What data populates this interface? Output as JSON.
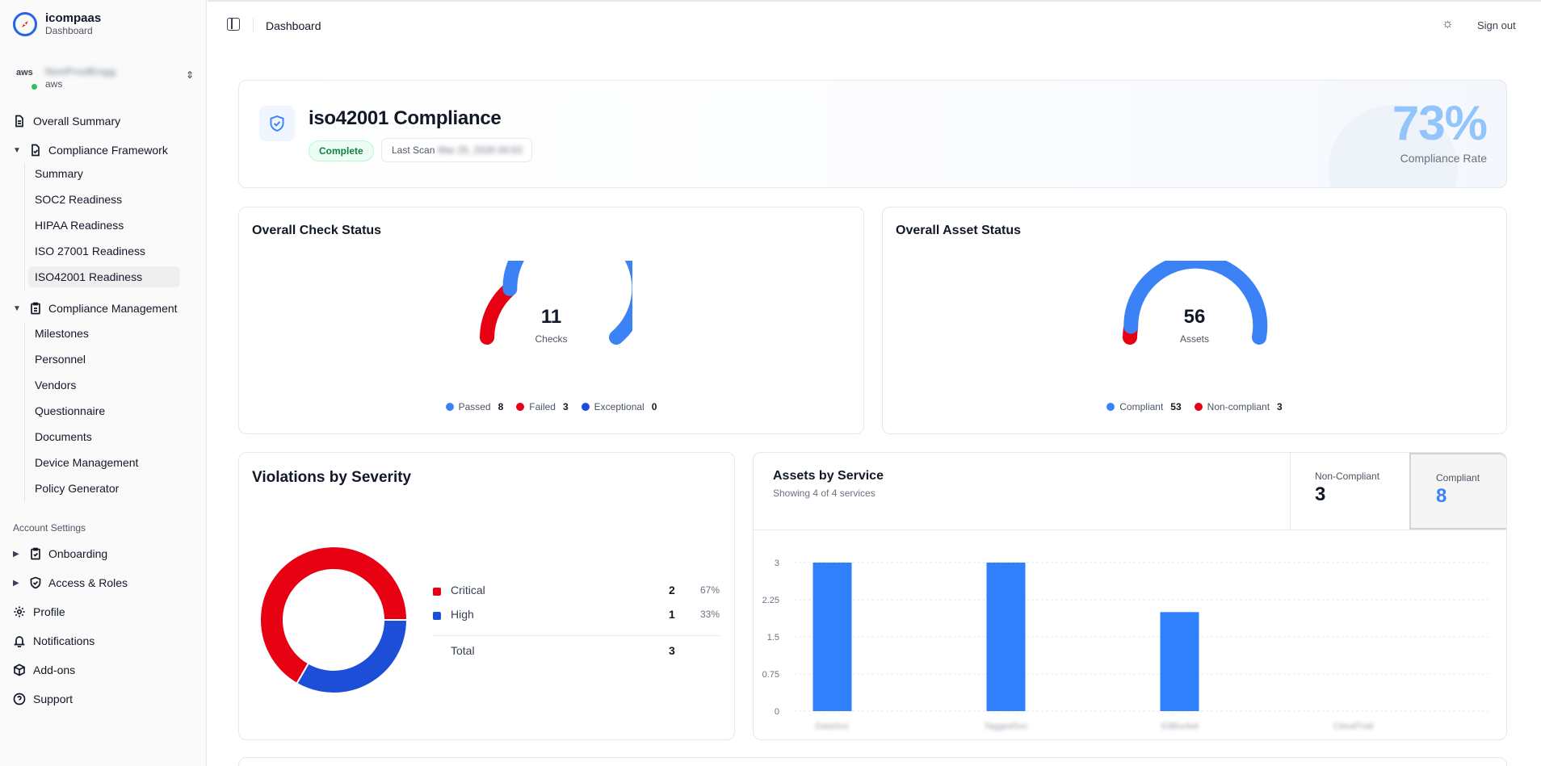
{
  "brand": {
    "title": "icompaas",
    "subtitle": "Dashboard"
  },
  "org": {
    "logo_text": "aws",
    "name": "NonProdEngg",
    "provider": "aws"
  },
  "sidebar": {
    "overall_summary": "Overall Summary",
    "compliance_framework": {
      "label": "Compliance Framework",
      "items": [
        "Summary",
        "SOC2 Readiness",
        "HIPAA Readiness",
        "ISO 27001 Readiness",
        "ISO42001 Readiness"
      ],
      "active_index": 4
    },
    "compliance_management": {
      "label": "Compliance Management",
      "items": [
        "Milestones",
        "Personnel",
        "Vendors",
        "Questionnaire",
        "Documents",
        "Device Management",
        "Policy Generator"
      ]
    },
    "account_settings_label": "Account Settings",
    "onboarding": "Onboarding",
    "access_roles": "Access & Roles",
    "profile": "Profile",
    "notifications": "Notifications",
    "addons": "Add-ons",
    "support": "Support"
  },
  "topbar": {
    "title": "Dashboard",
    "sign_out": "Sign out"
  },
  "hero": {
    "title": "iso42001 Compliance",
    "status": "Complete",
    "last_scan_label": "Last Scan",
    "last_scan_value": "Mar 25, 2026 00:53",
    "rate": "73%",
    "rate_label": "Compliance Rate"
  },
  "check_status": {
    "title": "Overall Check Status",
    "total": "11",
    "unit": "Checks",
    "legend": [
      {
        "label": "Passed",
        "count": "8",
        "color": "#3b82f6"
      },
      {
        "label": "Failed",
        "count": "3",
        "color": "#e60012"
      },
      {
        "label": "Exceptional",
        "count": "0",
        "color": "#1d4ed8"
      }
    ],
    "passed": 8,
    "failed": 3,
    "exceptional": 0
  },
  "asset_status": {
    "title": "Overall Asset Status",
    "total": "56",
    "unit": "Assets",
    "legend": [
      {
        "label": "Compliant",
        "count": "53",
        "color": "#3b82f6"
      },
      {
        "label": "Non-compliant",
        "count": "3",
        "color": "#e60012"
      }
    ],
    "compliant": 53,
    "non_compliant": 3
  },
  "violations": {
    "title": "Violations by Severity",
    "rows": [
      {
        "name": "Critical",
        "count": "2",
        "pct": "67%",
        "color": "#e60012"
      },
      {
        "name": "High",
        "count": "1",
        "pct": "33%",
        "color": "#1d4ed8"
      }
    ],
    "total_label": "Total",
    "total": "3"
  },
  "assets_by_service": {
    "title": "Assets by Service",
    "subtitle": "Showing 4 of 4 services",
    "non_compliant_label": "Non-Compliant",
    "non_compliant_value": "3",
    "compliant_label": "Compliant",
    "compliant_value": "8"
  },
  "chart_data": {
    "type": "bar",
    "categories": [
      "DataSvc",
      "TaggedSvc",
      "S3Bucket",
      "CloudTrail"
    ],
    "values": [
      3,
      3,
      2,
      0
    ],
    "ylim": [
      0,
      3
    ],
    "yticks": [
      "0",
      "0.75",
      "1.5",
      "2.25",
      "3"
    ],
    "grid": true,
    "color": "#2f80fa"
  }
}
